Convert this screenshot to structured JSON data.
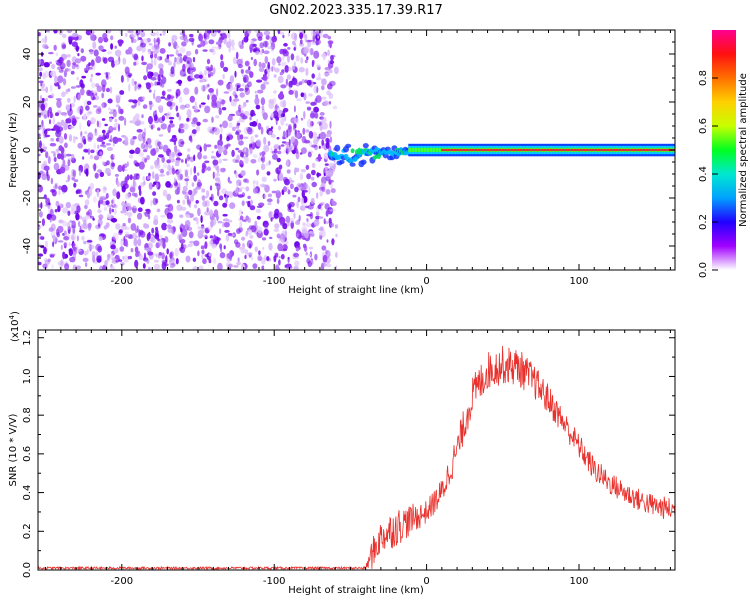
{
  "title": "GN02.2023.335.17.39.R17",
  "colors": {
    "snr_line": "#e8312c",
    "spectrogram_noise": "#6a00e8",
    "spectrogram_peak": "#e8262c"
  },
  "chart_data": [
    {
      "type": "heatmap",
      "name": "spectrogram",
      "xlabel": "Height of straight line (km)",
      "ylabel": "Frequency (Hz)",
      "xlim": [
        -255,
        163
      ],
      "ylim": [
        -50,
        50
      ],
      "xticks": [
        "-200",
        "-100",
        "0",
        "100"
      ],
      "xtick_values": [
        -200,
        -100,
        0,
        100
      ],
      "yticks": [
        "40",
        "20",
        "0",
        "-20",
        "-40"
      ],
      "ytick_values": [
        40,
        20,
        0,
        -20,
        -40
      ],
      "noise_region_x": [
        -255,
        -63
      ],
      "signal_start_x": -63,
      "signal_center_frequency_hz": 0,
      "colorbar": {
        "label": "Normalized spectral amplitude",
        "range": [
          0,
          1
        ],
        "ticks": [
          "0.0",
          "0.2",
          "0.4",
          "0.6",
          "0.8"
        ],
        "tick_values": [
          0.0,
          0.2,
          0.4,
          0.6,
          0.8
        ],
        "colors": [
          "#ffffff",
          "#a000ff",
          "#2000ff",
          "#00a0ff",
          "#00e8d0",
          "#00ff20",
          "#c8ff00",
          "#ffd000",
          "#ff7000",
          "#ff1010",
          "#ff0090"
        ]
      }
    },
    {
      "type": "line",
      "name": "snr",
      "xlabel": "Height of straight line (km)",
      "ylabel": "SNR (10 * V/V)",
      "scale_label_base": "(x10",
      "scale_label_exp": "4",
      "scale_label_close": ")",
      "xlim": [
        -255,
        163
      ],
      "ylim": [
        0,
        1.24
      ],
      "xticks": [
        "-200",
        "-100",
        "0",
        "100"
      ],
      "xtick_values": [
        -200,
        -100,
        0,
        100
      ],
      "yticks": [
        "0.0",
        "0.2",
        "0.4",
        "0.6",
        "0.8",
        "1.0",
        "1.2"
      ],
      "ytick_values": [
        0.0,
        0.2,
        0.4,
        0.6,
        0.8,
        1.0,
        1.2
      ],
      "envelope": {
        "x": [
          -255,
          -40,
          -36,
          -30,
          -20,
          -10,
          0,
          10,
          20,
          30,
          40,
          50,
          60,
          70,
          80,
          90,
          100,
          110,
          120,
          130,
          140,
          150,
          163
        ],
        "y": [
          0.01,
          0.01,
          0.08,
          0.17,
          0.22,
          0.26,
          0.3,
          0.4,
          0.62,
          0.9,
          1.03,
          1.06,
          1.05,
          0.98,
          0.88,
          0.76,
          0.64,
          0.52,
          0.45,
          0.4,
          0.36,
          0.33,
          0.31
        ]
      },
      "noise_amplitude": {
        "x": [
          -255,
          -40,
          -36,
          -20,
          0,
          30,
          60,
          90,
          120,
          163
        ],
        "y": [
          0.006,
          0.006,
          0.08,
          0.1,
          0.06,
          0.1,
          0.1,
          0.07,
          0.06,
          0.06
        ]
      }
    }
  ]
}
